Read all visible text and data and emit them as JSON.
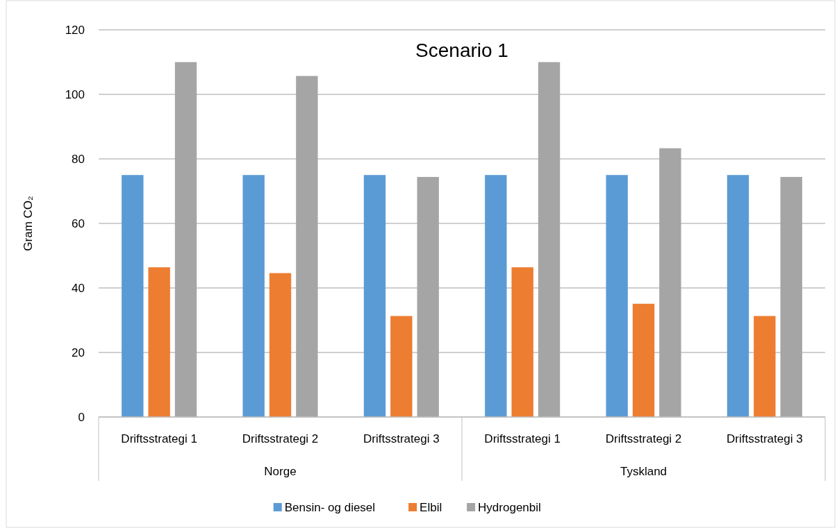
{
  "chart_data": {
    "type": "bar",
    "title": "Scenario 1",
    "ylabel": "Gram CO₂",
    "categories": [
      "Driftsstrategi 1",
      "Driftsstrategi 2",
      "Driftsstrategi 3",
      "Driftsstrategi 1",
      "Driftsstrategi 2",
      "Driftsstrategi 3"
    ],
    "series": [
      {
        "name": "Bensin- og diesel",
        "color": "#5b9bd5",
        "values": [
          75,
          75,
          75,
          75,
          75,
          75
        ]
      },
      {
        "name": "Elbil",
        "color": "#ed7d31",
        "values": [
          46.4,
          44.6,
          31.3,
          46.4,
          35.1,
          31.3
        ]
      },
      {
        "name": "Hydrogenbil",
        "color": "#a5a5a5",
        "values": [
          110,
          105.7,
          74.4,
          110,
          83.3,
          74.4
        ]
      }
    ],
    "ylim": [
      0,
      120
    ],
    "yticks": [
      0,
      20,
      40,
      60,
      80,
      100,
      120
    ],
    "grid": "y",
    "legend": "bottom",
    "annotations": [
      "Norge",
      "Tyskland"
    ]
  }
}
